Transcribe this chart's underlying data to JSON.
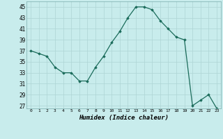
{
  "x": [
    0,
    1,
    2,
    3,
    4,
    5,
    6,
    7,
    8,
    9,
    10,
    11,
    12,
    13,
    14,
    15,
    16,
    17,
    18,
    19,
    20,
    21,
    22,
    23
  ],
  "y": [
    37,
    36.5,
    36,
    34,
    33,
    33,
    31.5,
    31.5,
    34,
    36,
    38.5,
    40.5,
    43,
    45,
    45,
    44.5,
    42.5,
    41,
    39.5,
    39,
    27,
    28,
    29,
    26.5
  ],
  "xlabel": "Humidex (Indice chaleur)",
  "ylim": [
    26.5,
    46
  ],
  "yticks": [
    27,
    29,
    31,
    33,
    35,
    37,
    39,
    41,
    43,
    45
  ],
  "xticks": [
    0,
    1,
    2,
    3,
    4,
    5,
    6,
    7,
    8,
    9,
    10,
    11,
    12,
    13,
    14,
    15,
    16,
    17,
    18,
    19,
    20,
    21,
    22,
    23
  ],
  "line_color": "#1a6b5a",
  "marker": "D",
  "marker_size": 1.8,
  "bg_color": "#c8ecec",
  "grid_color": "#aed4d4"
}
